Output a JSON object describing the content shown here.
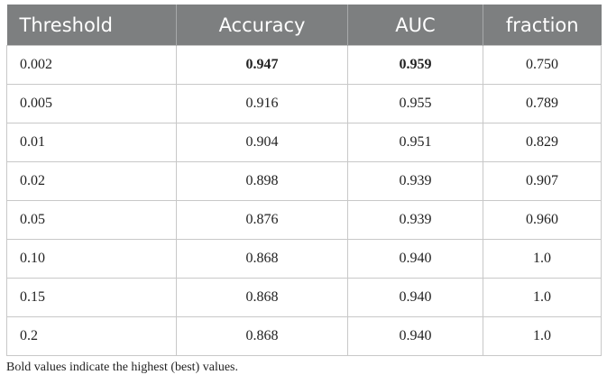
{
  "table": {
    "columns": [
      "Threshold",
      "Accuracy",
      "AUC",
      "fraction"
    ],
    "rows": [
      [
        "0.002",
        "0.947",
        "0.959",
        "0.750"
      ],
      [
        "0.005",
        "0.916",
        "0.955",
        "0.789"
      ],
      [
        "0.01",
        "0.904",
        "0.951",
        "0.829"
      ],
      [
        "0.02",
        "0.898",
        "0.939",
        "0.907"
      ],
      [
        "0.05",
        "0.876",
        "0.939",
        "0.960"
      ],
      [
        "0.10",
        "0.868",
        "0.940",
        "1.0"
      ],
      [
        "0.15",
        "0.868",
        "0.940",
        "1.0"
      ],
      [
        "0.2",
        "0.868",
        "0.940",
        "1.0"
      ]
    ],
    "footnote": "Bold values indicate the highest (best) values."
  }
}
